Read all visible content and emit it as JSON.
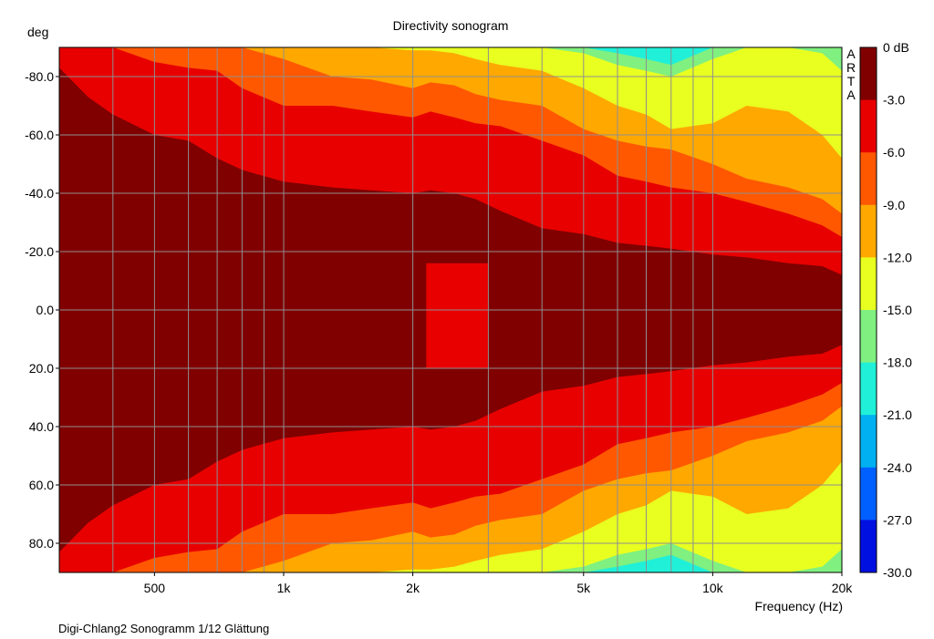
{
  "chart_data": {
    "type": "heatmap",
    "title": "Directivity sonogram",
    "ylabel": "deg",
    "xlabel": "Frequency (Hz)",
    "watermark": "ARTA",
    "footer": "Digi-Chlang2 Sonogramm 1/12 Glättung",
    "x_scale": "log",
    "xlim": [
      300,
      20000
    ],
    "ylim": [
      -90,
      90
    ],
    "x_ticks": [
      {
        "value": 500,
        "label": "500"
      },
      {
        "value": 1000,
        "label": "1k"
      },
      {
        "value": 2000,
        "label": "2k"
      },
      {
        "value": 5000,
        "label": "5k"
      },
      {
        "value": 10000,
        "label": "10k"
      },
      {
        "value": 20000,
        "label": "20k"
      }
    ],
    "y_ticks": [
      {
        "value": -80,
        "label": "-80.0"
      },
      {
        "value": -60,
        "label": "-60.0"
      },
      {
        "value": -40,
        "label": "-40.0"
      },
      {
        "value": -20,
        "label": "-20.0"
      },
      {
        "value": 0,
        "label": "0.0"
      },
      {
        "value": 20,
        "label": "20.0"
      },
      {
        "value": 40,
        "label": "40.0"
      },
      {
        "value": 60,
        "label": "60.0"
      },
      {
        "value": 80,
        "label": "80.0"
      }
    ],
    "colorbar": [
      {
        "label": "0 dB",
        "color": "#800000"
      },
      {
        "label": "-3.0",
        "color": "#e80000"
      },
      {
        "label": "-6.0",
        "color": "#ff5800"
      },
      {
        "label": "-9.0",
        "color": "#ffa800"
      },
      {
        "label": "-12.0",
        "color": "#e8ff20"
      },
      {
        "label": "-15.0",
        "color": "#80f080"
      },
      {
        "label": "-18.0",
        "color": "#20f0d8"
      },
      {
        "label": "-21.0",
        "color": "#00b0f0"
      },
      {
        "label": "-24.0",
        "color": "#0060ff"
      },
      {
        "label": "-27.0",
        "color": "#0010e0"
      },
      {
        "label": "-30.0",
        "color": ""
      }
    ],
    "contours": {
      "freqs": [
        300,
        350,
        400,
        500,
        600,
        700,
        800,
        1000,
        1300,
        1600,
        2000,
        2200,
        2500,
        2800,
        3200,
        4000,
        5000,
        6000,
        7000,
        8000,
        10000,
        12000,
        15000,
        18000,
        20000
      ],
      "boundaries_deg": [
        [
          83,
          73,
          67,
          60,
          58,
          52,
          48,
          44,
          42,
          41,
          40,
          41,
          40,
          38,
          34,
          28,
          26,
          23,
          22,
          21,
          19,
          18,
          16,
          15,
          12
        ],
        [
          90,
          90,
          90,
          85,
          83,
          82,
          76,
          70,
          70,
          68,
          66,
          68,
          66,
          64,
          63,
          58,
          53,
          46,
          44,
          42,
          40,
          37,
          33,
          29,
          25
        ],
        [
          90,
          90,
          90,
          90,
          90,
          90,
          90,
          86,
          80,
          79,
          76,
          78,
          77,
          74,
          72,
          70,
          62,
          58,
          56,
          55,
          50,
          45,
          42,
          38,
          33
        ],
        [
          90,
          90,
          90,
          90,
          90,
          90,
          90,
          90,
          90,
          90,
          89,
          89,
          88,
          86,
          84,
          82,
          76,
          70,
          67,
          62,
          64,
          70,
          68,
          60,
          52
        ],
        [
          90,
          90,
          90,
          90,
          90,
          90,
          90,
          90,
          90,
          90,
          90,
          90,
          90,
          90,
          90,
          90,
          88,
          84,
          82,
          80,
          86,
          90,
          90,
          88,
          82
        ],
        [
          90,
          90,
          90,
          90,
          90,
          90,
          90,
          90,
          90,
          90,
          90,
          90,
          90,
          90,
          90,
          90,
          90,
          88,
          86,
          84,
          90,
          90,
          90,
          90,
          90
        ]
      ]
    },
    "notch": {
      "f_start": 2150,
      "f_end": 3000,
      "deg_range": [
        -16,
        20
      ],
      "level_db": -3
    }
  }
}
